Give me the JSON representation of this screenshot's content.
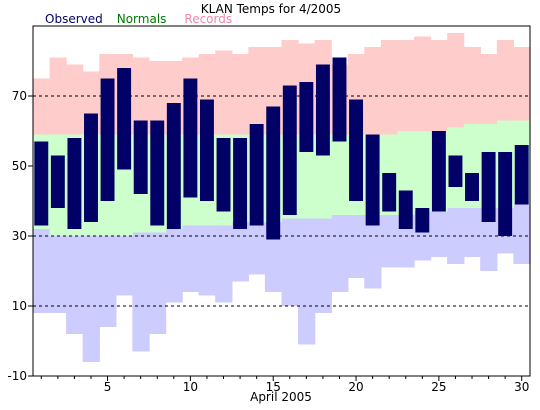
{
  "chart_data": {
    "type": "bar",
    "title": "KLAN Temps for 4/2005",
    "xlabel": "April 2005",
    "ylabel": "",
    "legend_position": "top-left",
    "legend": [
      {
        "label": "Observed",
        "color": "#000066"
      },
      {
        "label": "Normals",
        "color": "#007700"
      },
      {
        "label": "Records",
        "color": "#ee88aa"
      }
    ],
    "xlim": [
      0.5,
      30.5
    ],
    "ylim": [
      -10,
      90
    ],
    "x_ticks": [
      5,
      10,
      15,
      20,
      25,
      30
    ],
    "y_ticks": [
      -10,
      10,
      30,
      50,
      70
    ],
    "grid_y": [
      10,
      30,
      70
    ],
    "days": [
      1,
      2,
      3,
      4,
      5,
      6,
      7,
      8,
      9,
      10,
      11,
      12,
      13,
      14,
      15,
      16,
      17,
      18,
      19,
      20,
      21,
      22,
      23,
      24,
      25,
      26,
      27,
      28,
      29,
      30
    ],
    "record_high": [
      75,
      81,
      79,
      77,
      82,
      82,
      81,
      80,
      80,
      81,
      82,
      83,
      82,
      84,
      84,
      86,
      85,
      86,
      79,
      82,
      84,
      86,
      86,
      87,
      86,
      88,
      84,
      82,
      86,
      84
    ],
    "record_low": [
      8,
      8,
      2,
      -6,
      4,
      13,
      -3,
      2,
      11,
      14,
      13,
      11,
      17,
      19,
      14,
      10,
      -1,
      8,
      14,
      18,
      15,
      21,
      21,
      23,
      24,
      22,
      24,
      20,
      25,
      22
    ],
    "normal_high": [
      59,
      59,
      59,
      59,
      59,
      59,
      59,
      59,
      59,
      59,
      59,
      59,
      59,
      59,
      59,
      59,
      59,
      59,
      59,
      59,
      59,
      59,
      60,
      60,
      60,
      61,
      62,
      62,
      63,
      63
    ],
    "normal_low": [
      32,
      30,
      30,
      30,
      30,
      30,
      31,
      31,
      32,
      33,
      33,
      33,
      34,
      34,
      34,
      35,
      35,
      35,
      36,
      36,
      36,
      36,
      36,
      37,
      37,
      38,
      38,
      38,
      38,
      39
    ],
    "observed_high": [
      57,
      53,
      58,
      65,
      75,
      78,
      63,
      63,
      68,
      75,
      69,
      58,
      58,
      62,
      67,
      73,
      74,
      79,
      81,
      69,
      59,
      48,
      43,
      38,
      60,
      53,
      48,
      54,
      54,
      56
    ],
    "observed_low": [
      33,
      38,
      32,
      34,
      40,
      49,
      42,
      33,
      32,
      41,
      40,
      37,
      32,
      33,
      29,
      36,
      54,
      53,
      57,
      40,
      33,
      37,
      32,
      31,
      37,
      44,
      40,
      34,
      30,
      39
    ]
  }
}
